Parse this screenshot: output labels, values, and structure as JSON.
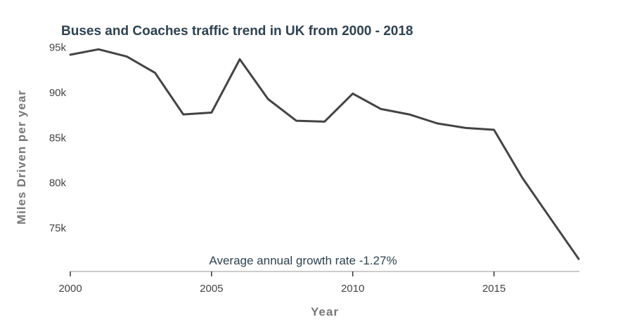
{
  "chart_data": {
    "type": "line",
    "title": "Buses and Coaches traffic trend in UK from 2000 - 2018",
    "xlabel": "Year",
    "ylabel": "Miles Driven per year",
    "annotation": "Average annual growth rate -1.27%",
    "x": [
      2000,
      2001,
      2002,
      2003,
      2004,
      2005,
      2006,
      2007,
      2008,
      2009,
      2010,
      2011,
      2012,
      2013,
      2014,
      2015,
      2016,
      2017,
      2018
    ],
    "series": [
      {
        "values": [
          94100,
          94700,
          93900,
          92100,
          87500,
          87700,
          93600,
          89200,
          86800,
          86700,
          89800,
          88100,
          87500,
          86500,
          86000,
          85800,
          80500,
          76000,
          71500
        ],
        "color": "#444444"
      }
    ],
    "xticks": [
      2000,
      2005,
      2010,
      2015
    ],
    "xtick_labels": [
      "2000",
      "2005",
      "2010",
      "2015"
    ],
    "yticks": [
      75000,
      80000,
      85000,
      90000,
      95000
    ],
    "ytick_labels": [
      "75k",
      "80k",
      "85k",
      "90k",
      "95k"
    ],
    "xlim": [
      2000,
      2018
    ],
    "ylim": [
      70200,
      95500
    ],
    "grid": false,
    "legend": "none"
  }
}
